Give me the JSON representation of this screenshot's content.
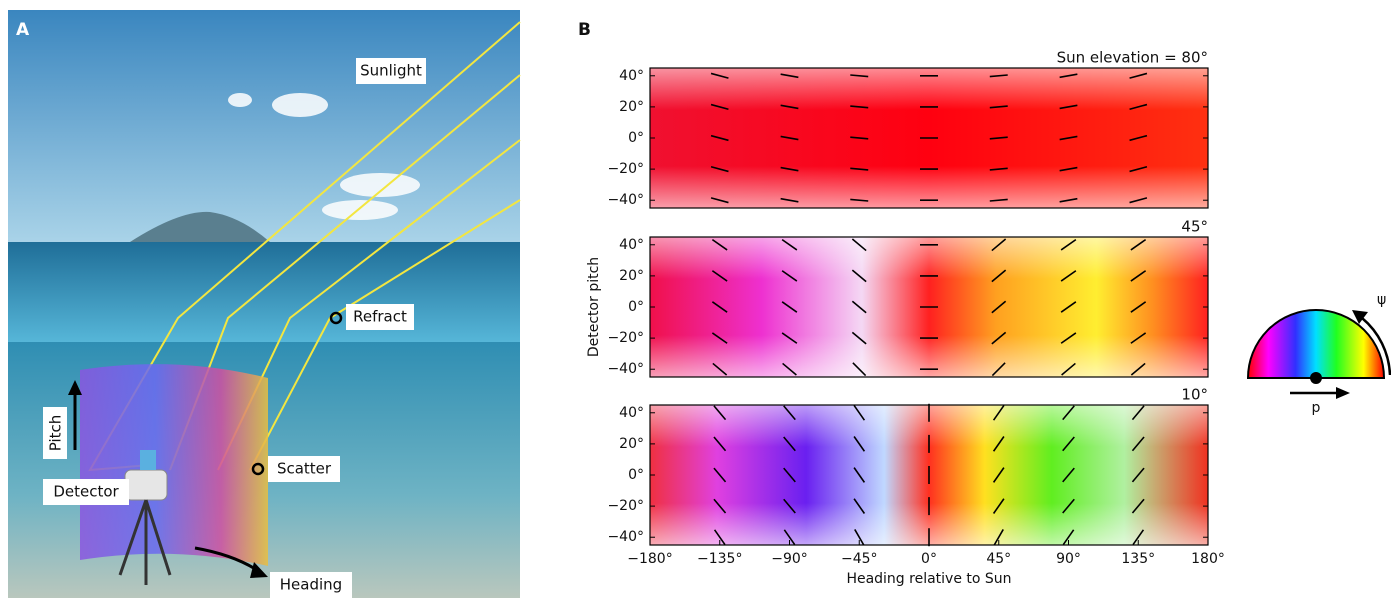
{
  "panel_a": {
    "label": "A",
    "sunlight": "Sunlight",
    "refract": "Refract",
    "scatter": "Scatter",
    "pitch": "Pitch",
    "detector": "Detector",
    "heading": "Heading"
  },
  "panel_b_label": "B",
  "legend_key": {
    "psi": "ψ",
    "p": "p"
  },
  "chart_data": [
    {
      "type": "heatmap",
      "title": "Sun elevation = 80°",
      "xlim": [
        -180,
        180
      ],
      "ylim": [
        -45,
        45
      ],
      "yticks": [
        {
          "value": 40,
          "label": "40°"
        },
        {
          "value": 20,
          "label": "20°"
        },
        {
          "value": 0,
          "label": "0°"
        },
        {
          "value": -20,
          "label": "−20°"
        },
        {
          "value": -40,
          "label": "−40°"
        }
      ],
      "grid_x": [
        -135,
        -90,
        -45,
        0,
        45,
        90,
        135
      ],
      "grid_y": [
        40,
        20,
        0,
        -20,
        -40
      ],
      "angles": [
        [
          -15,
          -10,
          -5,
          0,
          5,
          10,
          15
        ],
        [
          -15,
          -10,
          -5,
          0,
          5,
          10,
          15
        ],
        [
          -15,
          -10,
          -5,
          0,
          5,
          10,
          15
        ],
        [
          -15,
          -10,
          -5,
          0,
          5,
          10,
          15
        ],
        [
          -15,
          -10,
          -5,
          0,
          5,
          10,
          15
        ]
      ]
    },
    {
      "type": "heatmap",
      "title": "45°",
      "ylabel": "Detector pitch",
      "xlim": [
        -180,
        180
      ],
      "ylim": [
        -45,
        45
      ],
      "yticks": [
        {
          "value": 40,
          "label": "40°"
        },
        {
          "value": 20,
          "label": "20°"
        },
        {
          "value": 0,
          "label": "0°"
        },
        {
          "value": -20,
          "label": "−20°"
        },
        {
          "value": -40,
          "label": "−40°"
        }
      ],
      "grid_x": [
        -135,
        -90,
        -45,
        0,
        45,
        90,
        135
      ],
      "grid_y": [
        40,
        20,
        0,
        -20,
        -40
      ],
      "angles": [
        [
          -35,
          -35,
          -40,
          0,
          40,
          35,
          35
        ],
        [
          -35,
          -35,
          -40,
          0,
          40,
          35,
          35
        ],
        [
          -35,
          -35,
          -40,
          0,
          40,
          35,
          35
        ],
        [
          -35,
          -35,
          -40,
          0,
          40,
          35,
          35
        ],
        [
          -40,
          -40,
          -45,
          0,
          45,
          40,
          40
        ]
      ]
    },
    {
      "type": "heatmap",
      "title": "10°",
      "xlabel": "Heading relative to Sun",
      "xlim": [
        -180,
        180
      ],
      "ylim": [
        -45,
        45
      ],
      "xticks": [
        {
          "value": -180,
          "label": "−180°"
        },
        {
          "value": -135,
          "label": "−135°"
        },
        {
          "value": -90,
          "label": "−90°"
        },
        {
          "value": -45,
          "label": "−45°"
        },
        {
          "value": 0,
          "label": "0°"
        },
        {
          "value": 45,
          "label": "45°"
        },
        {
          "value": 90,
          "label": "90°"
        },
        {
          "value": 135,
          "label": "135°"
        },
        {
          "value": 180,
          "label": "180°"
        }
      ],
      "yticks": [
        {
          "value": 40,
          "label": "40°"
        },
        {
          "value": 20,
          "label": "20°"
        },
        {
          "value": 0,
          "label": "0°"
        },
        {
          "value": -20,
          "label": "−20°"
        },
        {
          "value": -40,
          "label": "−40°"
        }
      ],
      "grid_x": [
        -135,
        -90,
        -45,
        0,
        45,
        90,
        135
      ],
      "grid_y": [
        40,
        20,
        0,
        -20,
        -40
      ],
      "angles": [
        [
          -50,
          -50,
          -55,
          90,
          55,
          50,
          50
        ],
        [
          -50,
          -50,
          -55,
          90,
          55,
          50,
          50
        ],
        [
          -50,
          -50,
          -55,
          90,
          55,
          50,
          50
        ],
        [
          -50,
          -50,
          -55,
          90,
          55,
          50,
          50
        ],
        [
          -55,
          -55,
          -60,
          90,
          60,
          55,
          55
        ]
      ]
    }
  ]
}
